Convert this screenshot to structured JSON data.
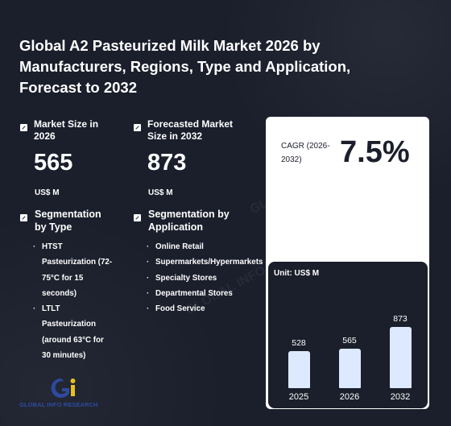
{
  "title": "Global A2 Pasteurized Milk Market 2026 by Manufacturers, Regions, Type and Application, Forecast to 2032",
  "market_size": {
    "label": "Market Size in 2026",
    "value": "565",
    "unit": "US$ M"
  },
  "forecast_size": {
    "label": "Forecasted Market Size in 2032",
    "value": "873",
    "unit": "US$ M"
  },
  "segmentation_type": {
    "label": "Segmentation by Type",
    "items": [
      "HTST Pasteurization (72-75°C for 15 seconds)",
      "LTLT Pasteurization (around 63°C for 30 minutes)"
    ]
  },
  "segmentation_application": {
    "label": "Segmentation by Application",
    "items": [
      "Online Retail",
      "Supermarkets/Hypermarkets",
      "Specialty Stores",
      "Departmental Stores",
      "Food Service"
    ]
  },
  "cagr": {
    "label": "CAGR (2026-2032)",
    "value": "7.5%"
  },
  "chart_data": {
    "type": "bar",
    "unit_label": "Unit: US$ M",
    "categories": [
      "2025",
      "2026",
      "2032"
    ],
    "values": [
      528,
      565,
      873
    ]
  },
  "logo": {
    "text": "GLOBAL INFO RESEARCH",
    "icon": "gi-logo-icon"
  },
  "colors": {
    "background": "#1b1f2c",
    "card": "#ffffff",
    "bar": "#dde9ff",
    "logo_blue": "#2d4a9e",
    "logo_yellow": "#e9c11b"
  }
}
